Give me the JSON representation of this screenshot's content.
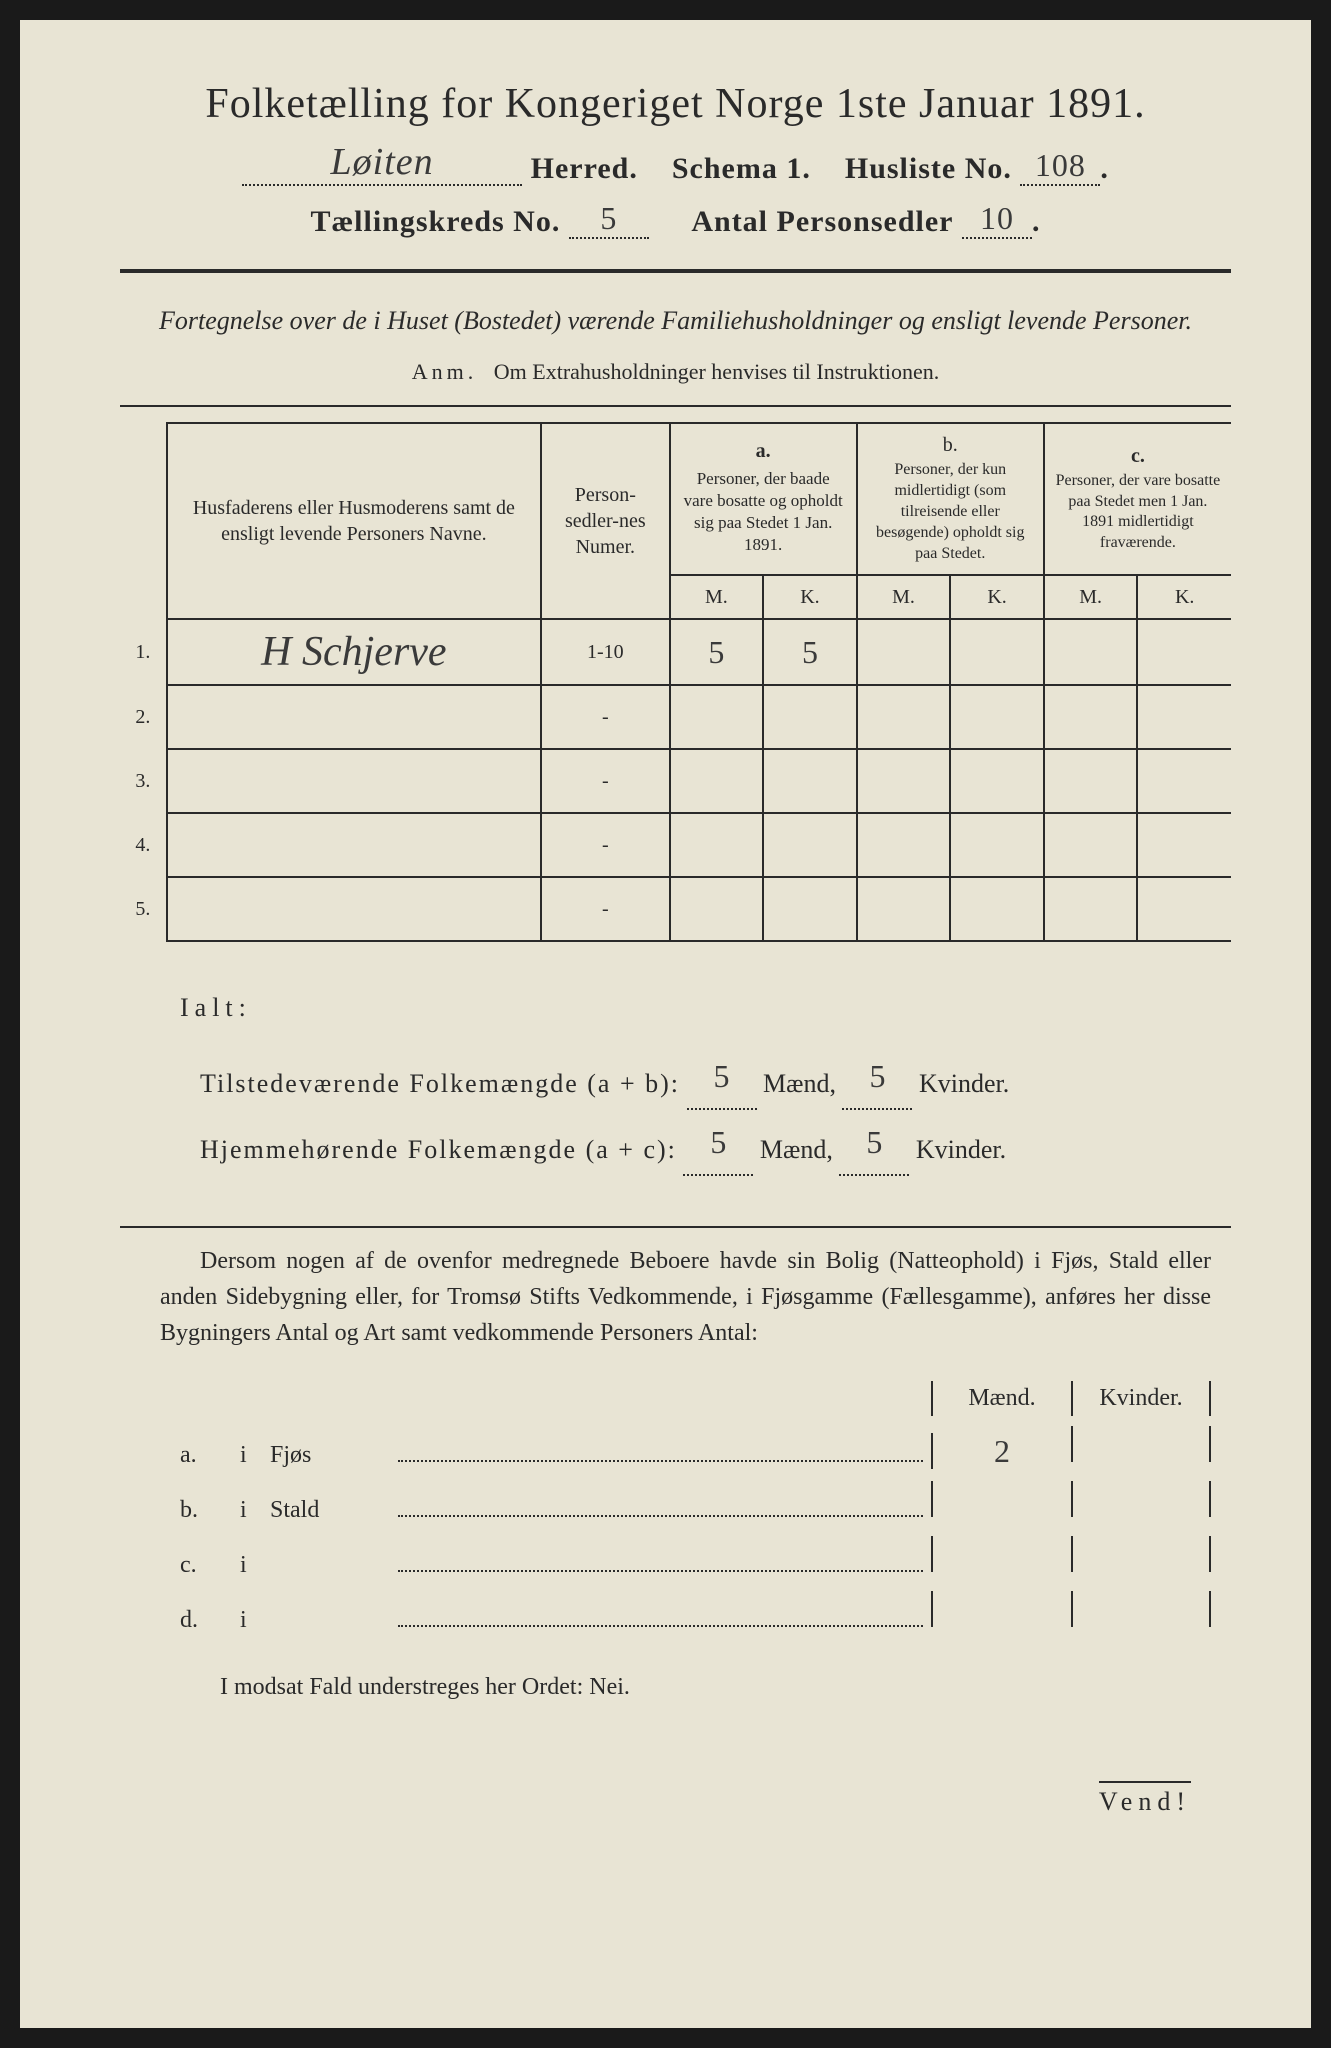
{
  "title": "Folketælling for Kongeriget Norge 1ste Januar 1891.",
  "header": {
    "herred_value": "Løiten",
    "herred_label": "Herred.",
    "schema_label": "Schema 1.",
    "husliste_label": "Husliste No.",
    "husliste_value": "108",
    "kreds_label": "Tællingskreds No.",
    "kreds_value": "5",
    "sedler_label": "Antal Personsedler",
    "sedler_value": "10"
  },
  "subtitle": "Fortegnelse over de i Huset (Bostedet) værende Familiehusholdninger og ensligt levende Personer.",
  "anm_label": "Anm.",
  "anm_text": "Om Extrahusholdninger henvises til Instruktionen.",
  "table": {
    "col_name": "Husfaderens eller Husmoderens samt de ensligt levende Personers Navne.",
    "col_num": "Person-sedler-nes Numer.",
    "col_a_label": "a.",
    "col_a_text": "Personer, der baade vare bosatte og opholdt sig paa Stedet 1 Jan. 1891.",
    "col_b_label": "b.",
    "col_b_text": "Personer, der kun midlertidigt (som tilreisende eller besøgende) opholdt sig paa Stedet.",
    "col_c_label": "c.",
    "col_c_text": "Personer, der vare bosatte paa Stedet men 1 Jan. 1891 midlertidigt fraværende.",
    "m": "M.",
    "k": "K.",
    "rows": [
      {
        "n": "1.",
        "name": "H Schjerve",
        "num": "1-10",
        "am": "5",
        "ak": "5",
        "bm": "",
        "bk": "",
        "cm": "",
        "ck": ""
      },
      {
        "n": "2.",
        "name": "",
        "num": "-",
        "am": "",
        "ak": "",
        "bm": "",
        "bk": "",
        "cm": "",
        "ck": ""
      },
      {
        "n": "3.",
        "name": "",
        "num": "-",
        "am": "",
        "ak": "",
        "bm": "",
        "bk": "",
        "cm": "",
        "ck": ""
      },
      {
        "n": "4.",
        "name": "",
        "num": "-",
        "am": "",
        "ak": "",
        "bm": "",
        "bk": "",
        "cm": "",
        "ck": ""
      },
      {
        "n": "5.",
        "name": "",
        "num": "-",
        "am": "",
        "ak": "",
        "bm": "",
        "bk": "",
        "cm": "",
        "ck": ""
      }
    ]
  },
  "ialt": {
    "label": "Ialt:",
    "line1_a": "Tilstedeværende Folkemængde (a + b):",
    "line1_m": "5",
    "line1_k": "5",
    "line2_a": "Hjemmehørende Folkemængde (a + c):",
    "line2_m": "5",
    "line2_k": "5",
    "maend": "Mænd,",
    "kvinder": "Kvinder."
  },
  "paragraph": "Dersom nogen af de ovenfor medregnede Beboere havde sin Bolig (Natteophold) i Fjøs, Stald eller anden Sidebygning eller, for Tromsø Stifts Vedkommende, i Fjøsgamme (Fællesgamme), anføres her disse Bygningers Antal og Art samt vedkommende Personers Antal:",
  "buildings": {
    "header_m": "Mænd.",
    "header_k": "Kvinder.",
    "rows": [
      {
        "lbl": "a.",
        "i": "i",
        "type": "Fjøs",
        "m": "2",
        "k": ""
      },
      {
        "lbl": "b.",
        "i": "i",
        "type": "Stald",
        "m": "",
        "k": ""
      },
      {
        "lbl": "c.",
        "i": "i",
        "type": "",
        "m": "",
        "k": ""
      },
      {
        "lbl": "d.",
        "i": "i",
        "type": "",
        "m": "",
        "k": ""
      }
    ]
  },
  "modsat": "I modsat Fald understreges her Ordet: Nei.",
  "vend": "Vend!"
}
